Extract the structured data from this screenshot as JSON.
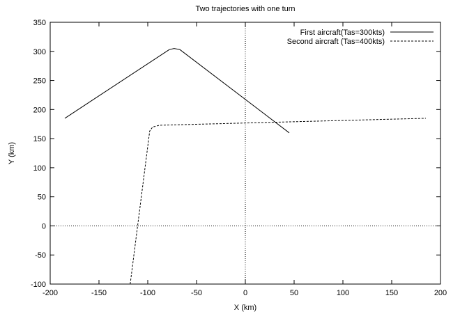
{
  "chart_data": {
    "type": "line",
    "title": "Two trajectories with one turn",
    "xlabel": "X (km)",
    "ylabel": "Y (km)",
    "xlim": [
      -200,
      200
    ],
    "ylim": [
      -100,
      350
    ],
    "xticks": [
      -200,
      -150,
      -100,
      -50,
      0,
      50,
      100,
      150,
      200
    ],
    "yticks": [
      -100,
      -50,
      0,
      50,
      100,
      150,
      200,
      250,
      300,
      350
    ],
    "zero_axes": true,
    "grid": false,
    "legend_position": "top-right",
    "series": [
      {
        "name": "First aircraft(Tas=300kts)",
        "style": "solid",
        "color": "#000000",
        "points": [
          [
            -185,
            185
          ],
          [
            -78,
            303
          ],
          [
            -73,
            305
          ],
          [
            -67,
            303
          ],
          [
            45,
            160
          ]
        ]
      },
      {
        "name": "Second aircraft (Tas=400kts)",
        "style": "dashed",
        "color": "#000000",
        "points": [
          [
            -118,
            -100
          ],
          [
            -98,
            163
          ],
          [
            -95,
            170
          ],
          [
            -88,
            173
          ],
          [
            185,
            185
          ]
        ]
      }
    ]
  }
}
